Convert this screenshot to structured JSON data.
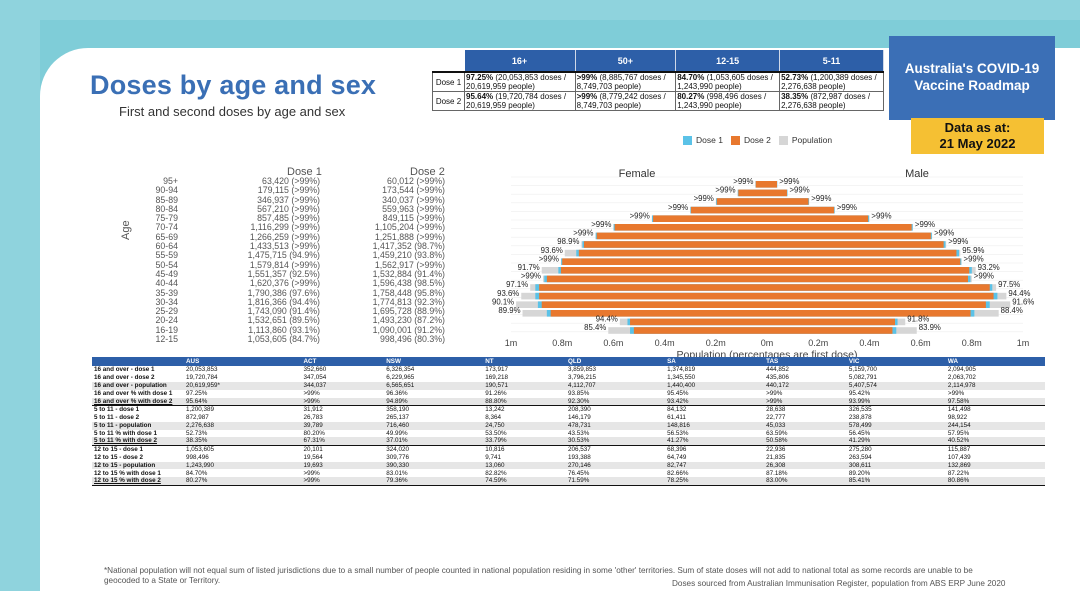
{
  "title": "Doses by age and sex",
  "subtitle": "First and second doses by age and sex",
  "badge": {
    "line1": "Australia's COVID-19",
    "line2": "Vaccine Roadmap"
  },
  "data_date": {
    "line1": "Data as at:",
    "line2": "21 May 2022"
  },
  "summary": {
    "headers": [
      "16+",
      "50+",
      "12-15",
      "5-11"
    ],
    "rows": [
      {
        "label": "Dose 1",
        "cells": [
          {
            "pct": "97.25%",
            "rest": " (20,053,853 doses / 20,619,959 people)"
          },
          {
            "pct": ">99%",
            "rest": " (8,885,767 doses / 8,749,703 people)"
          },
          {
            "pct": "84.70%",
            "rest": " (1,053,605 doses / 1,243,990 people)"
          },
          {
            "pct": "52.73%",
            "rest": " (1,200,389 doses / 2,276,638 people)"
          }
        ]
      },
      {
        "label": "Dose 2",
        "cells": [
          {
            "pct": "95.64%",
            "rest": " (19,720,784 doses / 20,619,959 people)"
          },
          {
            "pct": ">99%",
            "rest": " (8,779,242 doses / 8,749,703 people)"
          },
          {
            "pct": "80.27%",
            "rest": " (998,496 doses / 1,243,990 people)"
          },
          {
            "pct": "38.35%",
            "rest": " (872,987 doses / 2,276,638 people)"
          }
        ]
      }
    ]
  },
  "legend": [
    {
      "label": "Dose 1",
      "color": "#5bc2e7"
    },
    {
      "label": "Dose 2",
      "color": "#e8782e"
    },
    {
      "label": "Population",
      "color": "#d6d6d6"
    }
  ],
  "age_table": {
    "axis_label": "Age",
    "dose1_header": "Dose 1",
    "dose2_header": "Dose 2",
    "ages": [
      "95+",
      "90-94",
      "85-89",
      "80-84",
      "75-79",
      "70-74",
      "65-69",
      "60-64",
      "55-59",
      "50-54",
      "45-49",
      "40-44",
      "35-39",
      "30-34",
      "25-29",
      "20-24",
      "16-19",
      "12-15"
    ],
    "dose1": [
      "63,420 (>99%)",
      "179,115 (>99%)",
      "346,937 (>99%)",
      "567,210 (>99%)",
      "857,485 (>99%)",
      "1,116,299 (>99%)",
      "1,266,259 (>99%)",
      "1,433,513 (>99%)",
      "1,475,715 (94.9%)",
      "1,579,814 (>99%)",
      "1,551,357 (92.5%)",
      "1,620,376 (>99%)",
      "1,790,386 (97.6%)",
      "1,816,366 (94.4%)",
      "1,743,090 (91.4%)",
      "1,532,651 (89.5%)",
      "1,113,860 (93.1%)",
      "1,053,605 (84.7%)"
    ],
    "dose2": [
      "60,012 (>99%)",
      "173,544 (>99%)",
      "340,037 (>99%)",
      "559,963 (>99%)",
      "849,115 (>99%)",
      "1,105,204 (>99%)",
      "1,251,888 (>99%)",
      "1,417,352 (98.7%)",
      "1,459,210 (93.8%)",
      "1,562,917 (>99%)",
      "1,532,884 (91.4%)",
      "1,596,438 (98.5%)",
      "1,758,448 (95.8%)",
      "1,774,813 (92.3%)",
      "1,695,728 (88.9%)",
      "1,493,230 (87.2%)",
      "1,090,001 (91.2%)",
      "998,496 (80.3%)"
    ]
  },
  "chart_data": {
    "type": "bar",
    "orientation": "horizontal-pyramid",
    "female_label": "Female",
    "male_label": "Male",
    "xlabel": "Population (percentages are first dose)",
    "x_ticks": [
      "1m",
      "0.8m",
      "0.6m",
      "0.4m",
      "0.2m",
      "0m",
      "0.2m",
      "0.4m",
      "0.6m",
      "0.8m",
      "1m"
    ],
    "xlim_millions": [
      -1,
      1
    ],
    "categories": [
      "95+",
      "90-94",
      "85-89",
      "80-84",
      "75-79",
      "70-74",
      "65-69",
      "60-64",
      "55-59",
      "50-54",
      "45-49",
      "40-44",
      "35-39",
      "30-34",
      "25-29",
      "20-24",
      "16-19",
      "12-15"
    ],
    "female": {
      "population": [
        0.045,
        0.115,
        0.2,
        0.3,
        0.45,
        0.6,
        0.67,
        0.725,
        0.79,
        0.805,
        0.88,
        0.875,
        0.925,
        0.96,
        0.98,
        0.955,
        0.575,
        0.62
      ],
      "dose2": [
        0.044,
        0.112,
        0.196,
        0.297,
        0.445,
        0.595,
        0.665,
        0.715,
        0.735,
        0.8,
        0.805,
        0.86,
        0.89,
        0.89,
        0.88,
        0.845,
        0.535,
        0.52
      ],
      "dose1": [
        0.045,
        0.114,
        0.199,
        0.299,
        0.449,
        0.599,
        0.669,
        0.721,
        0.745,
        0.804,
        0.815,
        0.87,
        0.905,
        0.905,
        0.895,
        0.86,
        0.545,
        0.535
      ],
      "labels": [
        ">99%",
        ">99%",
        ">99%",
        ">99%",
        ">99%",
        ">99%",
        ">99%",
        "98.9%",
        "93.6%",
        ">99%",
        "91.7%",
        ">99%",
        "97.1%",
        "93.6%",
        "90.1%",
        "89.9%",
        "94.4%",
        "85.4%"
      ]
    },
    "male": {
      "population": [
        0.04,
        0.08,
        0.165,
        0.265,
        0.4,
        0.57,
        0.645,
        0.7,
        0.755,
        0.76,
        0.815,
        0.8,
        0.895,
        0.935,
        0.95,
        0.905,
        0.54,
        0.585
      ],
      "dose2": [
        0.039,
        0.078,
        0.162,
        0.262,
        0.395,
        0.565,
        0.64,
        0.69,
        0.74,
        0.755,
        0.79,
        0.785,
        0.87,
        0.885,
        0.855,
        0.795,
        0.5,
        0.49
      ],
      "dose1": [
        0.04,
        0.08,
        0.164,
        0.264,
        0.399,
        0.569,
        0.644,
        0.697,
        0.75,
        0.759,
        0.8,
        0.795,
        0.88,
        0.9,
        0.87,
        0.81,
        0.51,
        0.505
      ],
      "labels": [
        ">99%",
        ">99%",
        ">99%",
        ">99%",
        ">99%",
        ">99%",
        ">99%",
        ">99%",
        "95.9%",
        ">99%",
        "93.2%",
        ">99%",
        "97.5%",
        "94.4%",
        "91.6%",
        "88.4%",
        "91.8%",
        "83.9%"
      ]
    }
  },
  "jurisdictions": {
    "headers": [
      "AUS",
      "ACT",
      "NSW",
      "NT",
      "QLD",
      "SA",
      "TAS",
      "VIC",
      "WA"
    ],
    "rows": [
      {
        "label": "16 and over - dose 1",
        "values": [
          "20,053,853",
          "352,660",
          "6,326,354",
          "173,917",
          "3,859,853",
          "1,374,819",
          "444,852",
          "5,159,700",
          "2,094,905"
        ]
      },
      {
        "label": "16 and over - dose 2",
        "values": [
          "19,720,784",
          "347,054",
          "6,229,965",
          "169,218",
          "3,796,215",
          "1,345,550",
          "435,806",
          "5,082,791",
          "2,063,702"
        ]
      },
      {
        "label": "16 and over - population",
        "values": [
          "20,619,959*",
          "344,037",
          "6,565,651",
          "190,571",
          "4,112,707",
          "1,440,400",
          "440,172",
          "5,407,574",
          "2,114,978"
        ]
      },
      {
        "label": "16 and over % with dose 1",
        "values": [
          "97.25%",
          ">99%",
          "96.36%",
          "91.26%",
          "93.85%",
          "95.45%",
          ">99%",
          "95.42%",
          ">99%"
        ]
      },
      {
        "label": "16 and over % with dose 2",
        "values": [
          "95.64%",
          ">99%",
          "94.89%",
          "88.80%",
          "92.30%",
          "93.42%",
          ">99%",
          "93.99%",
          "97.58%"
        ]
      },
      {
        "label": "5 to 11 - dose 1",
        "values": [
          "1,200,389",
          "31,912",
          "358,190",
          "13,242",
          "208,390",
          "84,132",
          "28,638",
          "326,535",
          "141,498"
        ]
      },
      {
        "label": "5 to 11 - dose 2",
        "values": [
          "872,987",
          "26,783",
          "265,137",
          "8,364",
          "146,179",
          "61,411",
          "22,777",
          "238,878",
          "98,922"
        ]
      },
      {
        "label": "5 to 11 - population",
        "values": [
          "2,276,638",
          "39,789",
          "716,460",
          "24,750",
          "478,731",
          "148,816",
          "45,033",
          "578,499",
          "244,154"
        ]
      },
      {
        "label": "5 to 11 % with dose 1",
        "values": [
          "52.73%",
          "80.20%",
          "49.99%",
          "53.50%",
          "43.53%",
          "56.53%",
          "63.59%",
          "56.45%",
          "57.95%"
        ]
      },
      {
        "label": "5 to 11 % with dose 2",
        "values": [
          "38.35%",
          "67.31%",
          "37.01%",
          "33.79%",
          "30.53%",
          "41.27%",
          "50.58%",
          "41.29%",
          "40.52%"
        ]
      },
      {
        "label": "12 to 15 - dose 1",
        "values": [
          "1,053,605",
          "20,101",
          "324,020",
          "10,816",
          "206,537",
          "68,396",
          "22,936",
          "275,280",
          "115,887"
        ]
      },
      {
        "label": "12 to 15 - dose 2",
        "values": [
          "998,496",
          "19,564",
          "309,776",
          "9,741",
          "193,388",
          "64,749",
          "21,835",
          "263,594",
          "107,439"
        ]
      },
      {
        "label": "12 to 15 - population",
        "values": [
          "1,243,990",
          "19,693",
          "390,330",
          "13,060",
          "270,146",
          "82,747",
          "26,308",
          "308,611",
          "132,869"
        ]
      },
      {
        "label": "12 to 15 % with dose 1",
        "values": [
          "84.70%",
          ">99%",
          "83.01%",
          "82.82%",
          "76.45%",
          "82.66%",
          "87.18%",
          "89.20%",
          "87.22%"
        ]
      },
      {
        "label": "12 to 15 % with dose 2",
        "values": [
          "80.27%",
          ">99%",
          "79.36%",
          "74.59%",
          "71.59%",
          "78.25%",
          "83.00%",
          "85.41%",
          "80.86%"
        ]
      }
    ]
  },
  "footnote": "*National population will not equal sum of listed jurisdictions due to a small number of people counted in national population residing in some 'other' territories. Sum of state doses will not add to national total as some records are unable to be geocoded to a State or Territory.",
  "source": "Doses sourced from Australian Immunisation Register, population from ABS ERP June 2020"
}
